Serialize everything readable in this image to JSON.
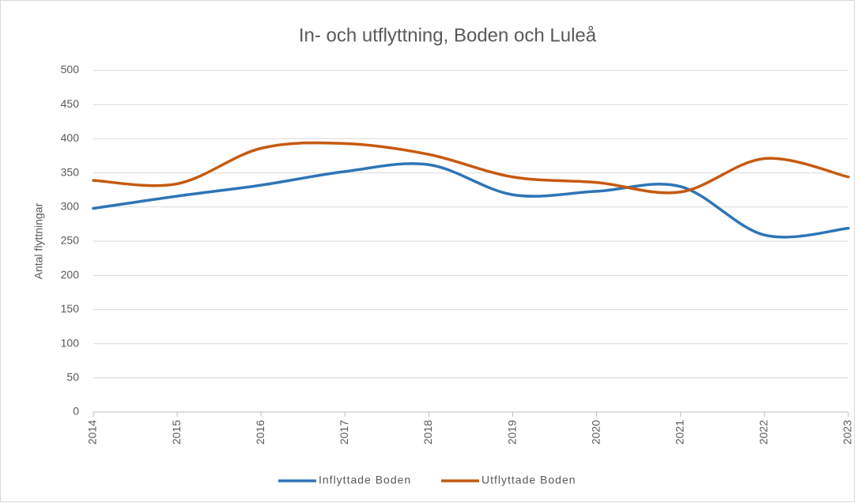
{
  "chart_data": {
    "type": "line",
    "title": "In- och utflyttning, Boden och Luleå",
    "y_label": "Antal flyttningar",
    "categories": [
      "2014",
      "2015",
      "2016",
      "2017",
      "2018",
      "2019",
      "2020",
      "2021",
      "2022",
      "2023"
    ],
    "series": [
      {
        "name": "Inflyttade Boden",
        "color": "#2e75b6",
        "values": [
          298,
          316,
          332,
          352,
          362,
          318,
          323,
          330,
          259,
          269
        ]
      },
      {
        "name": "Utflyttade Boden",
        "color": "#c55a11",
        "values": [
          339,
          334,
          386,
          393,
          377,
          344,
          336,
          322,
          371,
          344
        ]
      }
    ],
    "smooth": true,
    "ylim": [
      0,
      500
    ],
    "yticks": [
      0,
      50,
      100,
      150,
      200,
      250,
      300,
      350,
      400,
      450,
      500
    ],
    "grid": true,
    "legend": "bottom"
  }
}
